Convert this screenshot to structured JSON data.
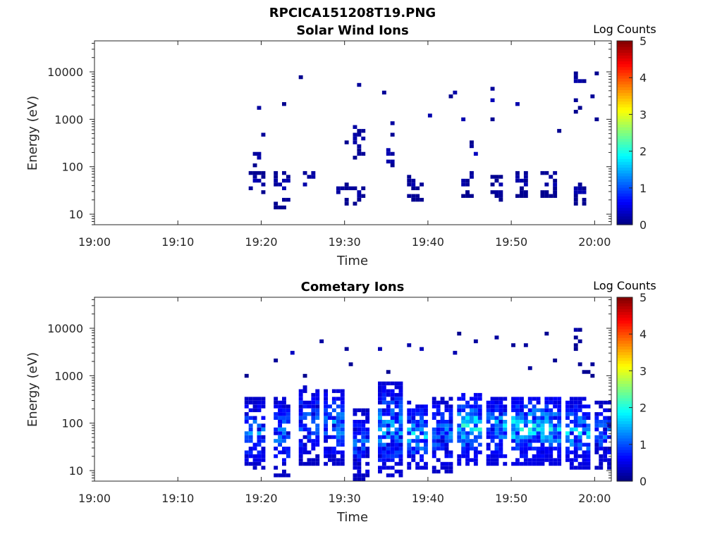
{
  "figure_title": "RPCICA151208T19.PNG",
  "chart_data": [
    {
      "type": "heatmap",
      "title": "Solar Wind Ions",
      "xlabel": "Time",
      "ylabel": "Energy (eV)",
      "x_range": [
        "19:00",
        "20:02"
      ],
      "x_ticks": [
        "19:00",
        "19:10",
        "19:20",
        "19:30",
        "19:40",
        "19:50",
        "20:00"
      ],
      "y_scale": "log",
      "y_range": [
        6,
        45000
      ],
      "y_ticks": [
        10,
        100,
        1000,
        10000
      ],
      "y_tick_labels": [
        "10",
        "100",
        "1000",
        "10000"
      ],
      "colorbar": {
        "label": "Log Counts",
        "min": 0,
        "max": 5,
        "ticks": [
          "0",
          "1",
          "2",
          "3",
          "4",
          "5"
        ],
        "colormap": "jet"
      },
      "grid": false,
      "clusters": [
        {
          "start": "19:18.5",
          "end": "19:20.5",
          "e_low": 28,
          "e_high": 70,
          "level": 0.3,
          "density": 0.55
        },
        {
          "start": "19:18.5",
          "end": "19:20",
          "e_low": 110,
          "e_high": 200,
          "level": 0.3,
          "density": 0.35
        },
        {
          "start": "19:21.5",
          "end": "19:23.5",
          "e_low": 14,
          "e_high": 80,
          "level": 0.3,
          "density": 0.4
        },
        {
          "start": "19:25",
          "end": "19:26.5",
          "e_low": 25,
          "e_high": 100,
          "level": 0.3,
          "density": 0.3
        },
        {
          "start": "19:29",
          "end": "19:32.5",
          "e_low": 18,
          "e_high": 40,
          "level": 0.3,
          "density": 0.35
        },
        {
          "start": "19:31",
          "end": "19:32.5",
          "e_low": 150,
          "e_high": 600,
          "level": 0.3,
          "density": 0.5
        },
        {
          "start": "19:35",
          "end": "19:36",
          "e_low": 80,
          "e_high": 350,
          "level": 0.3,
          "density": 0.35
        },
        {
          "start": "19:37.5",
          "end": "19:39.5",
          "e_low": 20,
          "e_high": 60,
          "level": 0.3,
          "density": 0.5
        },
        {
          "start": "19:44",
          "end": "19:45.5",
          "e_low": 25,
          "e_high": 80,
          "level": 0.3,
          "density": 0.65
        },
        {
          "start": "19:45",
          "end": "19:46",
          "e_low": 100,
          "e_high": 300,
          "level": 0.3,
          "density": 0.35
        },
        {
          "start": "19:47.5",
          "end": "19:49",
          "e_low": 20,
          "e_high": 60,
          "level": 0.3,
          "density": 0.55
        },
        {
          "start": "19:50.5",
          "end": "19:52",
          "e_low": 25,
          "e_high": 80,
          "level": 0.3,
          "density": 0.65
        },
        {
          "start": "19:53.5",
          "end": "19:55.5",
          "e_low": 25,
          "e_high": 80,
          "level": 0.3,
          "density": 0.55
        },
        {
          "start": "19:57.5",
          "end": "19:59",
          "e_low": 18,
          "e_high": 45,
          "level": 0.3,
          "density": 0.65
        },
        {
          "start": "19:57.5",
          "end": "19:58.5",
          "e_low": 1500,
          "e_high": 10000,
          "level": 0.3,
          "density": 0.25
        },
        {
          "start": "19:18",
          "end": "20:01",
          "e_low": 300,
          "e_high": 10000,
          "level": 0.3,
          "density": 0.012
        }
      ]
    },
    {
      "type": "heatmap",
      "title": "Cometary Ions",
      "xlabel": "Time",
      "ylabel": "Energy (eV)",
      "x_range": [
        "19:00",
        "20:02"
      ],
      "x_ticks": [
        "19:00",
        "19:10",
        "19:20",
        "19:30",
        "19:40",
        "19:50",
        "20:00"
      ],
      "y_scale": "log",
      "y_range": [
        6,
        45000
      ],
      "y_ticks": [
        10,
        100,
        1000,
        10000
      ],
      "y_tick_labels": [
        "10",
        "100",
        "1000",
        "10000"
      ],
      "colorbar": {
        "label": "Log Counts",
        "min": 0,
        "max": 5,
        "ticks": [
          "0",
          "1",
          "2",
          "3",
          "4",
          "5"
        ],
        "colormap": "jet"
      },
      "grid": false,
      "clusters": [
        {
          "start": "19:18",
          "end": "19:20.5",
          "e_low": 12,
          "e_high": 300,
          "level": 1.4,
          "density": 0.75
        },
        {
          "start": "19:21.5",
          "end": "19:23.5",
          "e_low": 8,
          "e_high": 350,
          "level": 1.3,
          "density": 0.7
        },
        {
          "start": "19:24.5",
          "end": "19:27",
          "e_low": 15,
          "e_high": 600,
          "level": 1.3,
          "density": 0.75
        },
        {
          "start": "19:27.5",
          "end": "19:30",
          "e_low": 15,
          "e_high": 500,
          "level": 1.5,
          "density": 0.8
        },
        {
          "start": "19:31",
          "end": "19:33",
          "e_low": 6,
          "e_high": 200,
          "level": 1.2,
          "density": 0.7
        },
        {
          "start": "19:34",
          "end": "19:37",
          "e_low": 8,
          "e_high": 700,
          "level": 1.6,
          "density": 0.8
        },
        {
          "start": "19:37.5",
          "end": "19:40",
          "e_low": 12,
          "e_high": 250,
          "level": 1.8,
          "density": 0.75
        },
        {
          "start": "19:40.5",
          "end": "19:43",
          "e_low": 10,
          "e_high": 300,
          "level": 1.4,
          "density": 0.75
        },
        {
          "start": "19:43.5",
          "end": "19:46.5",
          "e_low": 15,
          "e_high": 400,
          "level": 2.0,
          "density": 0.8
        },
        {
          "start": "19:47",
          "end": "19:49.5",
          "e_low": 15,
          "e_high": 300,
          "level": 1.8,
          "density": 0.75
        },
        {
          "start": "19:50",
          "end": "19:53",
          "e_low": 15,
          "e_high": 350,
          "level": 2.0,
          "density": 0.8
        },
        {
          "start": "19:53",
          "end": "19:56",
          "e_low": 15,
          "e_high": 350,
          "level": 1.9,
          "density": 0.8
        },
        {
          "start": "19:56.5",
          "end": "19:59.5",
          "e_low": 12,
          "e_high": 300,
          "level": 1.8,
          "density": 0.75
        },
        {
          "start": "20:00",
          "end": "20:02",
          "e_low": 12,
          "e_high": 250,
          "level": 1.3,
          "density": 0.7
        },
        {
          "start": "19:57.5",
          "end": "19:58.5",
          "e_low": 4000,
          "e_high": 10000,
          "level": 0.4,
          "density": 0.5
        },
        {
          "start": "19:18",
          "end": "20:01",
          "e_low": 1000,
          "e_high": 8000,
          "level": 0.3,
          "density": 0.02
        }
      ]
    }
  ]
}
